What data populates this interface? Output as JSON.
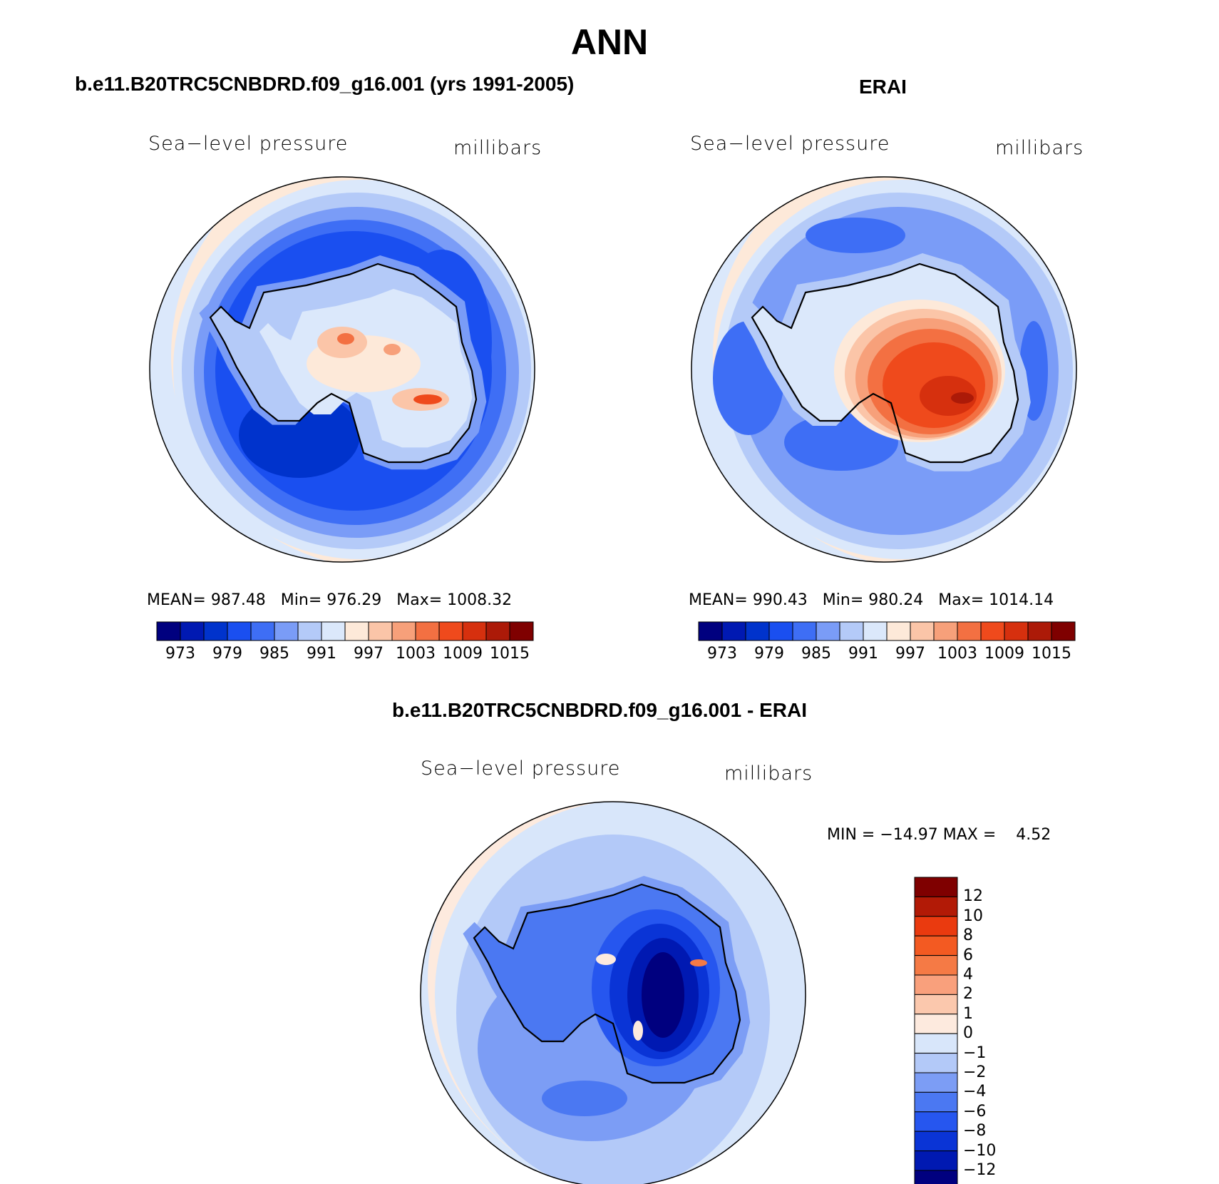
{
  "title": "ANN",
  "panel_left": {
    "title": "b.e11.B20TRC5CNBDRD.f09_g16.001 (yrs 1991-2005)",
    "variable": "Sea−level pressure",
    "units": "millibars",
    "mean_label": "MEAN=",
    "mean": "987.48",
    "min_label": "Min=",
    "min": "976.29",
    "max_label": "Max=",
    "max": "1008.32"
  },
  "panel_right": {
    "title": "ERAI",
    "variable": "Sea−level pressure",
    "units": "millibars",
    "mean_label": "MEAN=",
    "mean": "990.43",
    "min_label": "Min=",
    "min": "980.24",
    "max_label": "Max=",
    "max": "1014.14"
  },
  "panel_diff": {
    "title": "b.e11.B20TRC5CNBDRD.f09_g16.001 - ERAI",
    "variable": "Sea−level pressure",
    "units": "millibars",
    "minmax": "MIN = −14.97 MAX =    4.52"
  },
  "abs_colorbar": {
    "labels": [
      "973",
      "979",
      "985",
      "991",
      "997",
      "1003",
      "1009",
      "1015"
    ],
    "colors": [
      "#00007f",
      "#0019b2",
      "#0033cc",
      "#1a4ff0",
      "#3e6ef5",
      "#7a9cf7",
      "#b4caf8",
      "#dbe8fb",
      "#fde9d9",
      "#fbc5a8",
      "#f7a07a",
      "#f37042",
      "#ef4a1c",
      "#d6300e",
      "#ac1a08",
      "#7f0000"
    ]
  },
  "diff_colorbar": {
    "labels": [
      "12",
      "10",
      "8",
      "6",
      "4",
      "2",
      "1",
      "0",
      "−1",
      "−2",
      "−4",
      "−6",
      "−8",
      "−10",
      "−12"
    ],
    "colors": [
      "#7f0000",
      "#b21a06",
      "#ea3a0f",
      "#f35a22",
      "#f57a45",
      "#f9a07c",
      "#fbc8ad",
      "#fdeade",
      "#d8e6fa",
      "#b3c9f8",
      "#7c9df5",
      "#4b78f2",
      "#2656ef",
      "#0a34d6",
      "#0019b2",
      "#00007f"
    ]
  }
}
